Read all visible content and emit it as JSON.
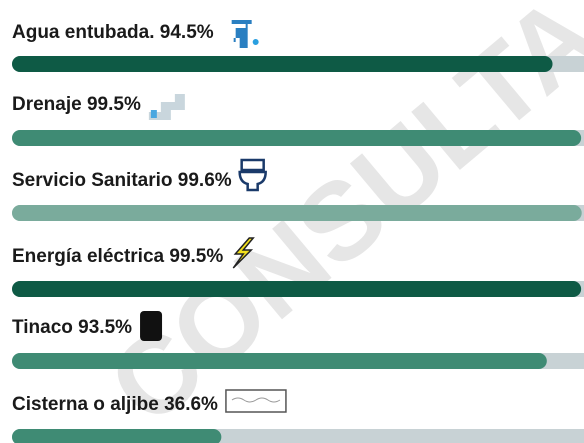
{
  "chart_data": {
    "type": "bar",
    "orientation": "horizontal",
    "watermark": "CONSULTA PÚBLICA",
    "categories": [
      "Agua entubada.",
      "Drenaje",
      "Servicio Sanitario ",
      "Energía eléctrica",
      "Tinaco",
      "Cisterna o aljibe"
    ],
    "values": [
      94.5,
      99.5,
      99.6,
      99.5,
      93.5,
      36.6
    ],
    "value_labels": [
      "94.5%",
      "99.5%",
      "99.6%",
      "99.5%",
      "93.5%",
      "36.6%"
    ],
    "colors": [
      "#0e5a45",
      "#3f8b74",
      "#7aab9c",
      "#0e5a45",
      "#3f8b74",
      "#3f8b74"
    ],
    "track_color": "#c8d2d5",
    "xlim": [
      0,
      100
    ]
  }
}
